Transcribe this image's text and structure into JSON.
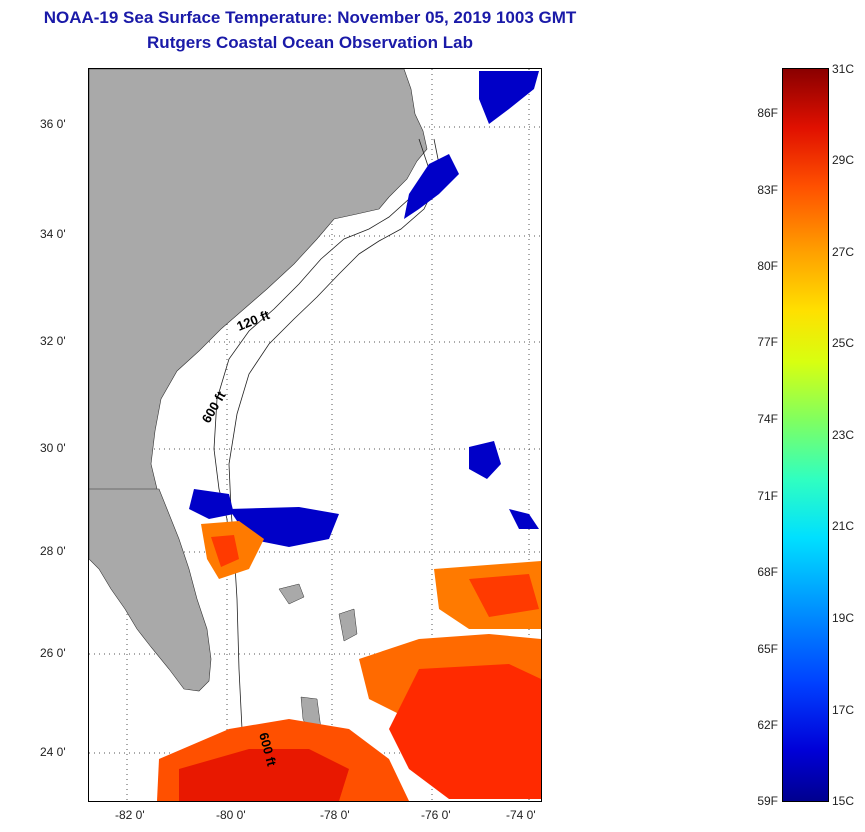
{
  "header": {
    "title": "NOAA-19 Sea Surface Temperature:  November 05, 2019 1003 GMT",
    "subtitle": "Rutgers Coastal Ocean Observation Lab"
  },
  "map": {
    "latitude_labels": [
      "36 0'",
      "34 0'",
      "32 0'",
      "30 0'",
      "28 0'",
      "26 0'",
      "24 0'"
    ],
    "longitude_labels": [
      "-82 0'",
      "-80 0'",
      "-78 0'",
      "-76 0'",
      "-74 0'"
    ],
    "contour_labels": [
      "120 ft",
      "600 ft",
      "600 ft"
    ],
    "colors": {
      "land": "#a9a9a9",
      "water": "#ffffff",
      "cold": "#0000c8",
      "warm": "#ff3300"
    }
  },
  "colorbar": {
    "fahrenheit_labels": [
      "86F",
      "83F",
      "80F",
      "77F",
      "74F",
      "71F",
      "68F",
      "65F",
      "62F",
      "59F"
    ],
    "celsius_labels": [
      "31C",
      "29C",
      "27C",
      "25C",
      "23C",
      "21C",
      "19C",
      "17C",
      "15C"
    ]
  }
}
